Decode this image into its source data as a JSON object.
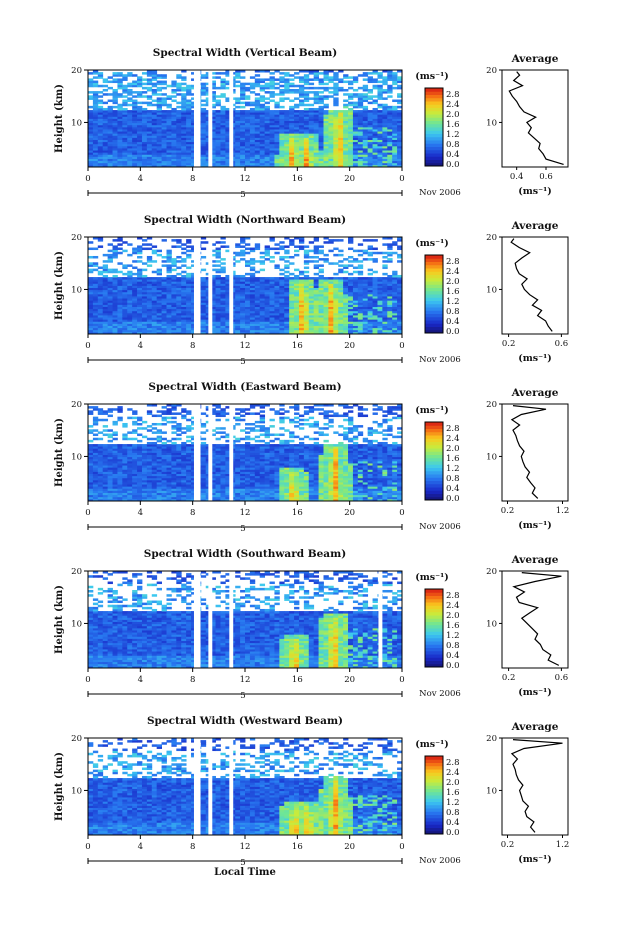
{
  "chart_data": [
    {
      "type": "heatmap",
      "title": "Spectral Width (Vertical Beam)",
      "ylabel": "Height (km)",
      "y_ticks": [
        "20",
        "10"
      ],
      "x_ticks": [
        "0",
        "4",
        "8",
        "12",
        "16",
        "20",
        "0"
      ],
      "day_marker": "5",
      "date_label": "Nov 2006",
      "xlim": [
        0,
        24
      ],
      "ylim": [
        1.5,
        20
      ],
      "colorbar": {
        "unit": "(ms⁻¹)",
        "ticks": [
          "2.8",
          "2.4",
          "2.0",
          "1.6",
          "1.2",
          "0.8",
          "0.4",
          "0.0"
        ],
        "range": [
          0,
          3
        ]
      },
      "data_gaps_hours": [
        [
          8.1,
          8.6
        ],
        [
          9.2,
          9.5
        ],
        [
          10.8,
          11.1
        ]
      ],
      "high_features": [
        {
          "t": 15.6,
          "h": 3
        },
        {
          "t": 16.7,
          "h": 3
        },
        {
          "t": 19.2,
          "h": 8
        }
      ],
      "average": {
        "title": "Average",
        "xlabel": "(ms⁻¹)",
        "x_ticks": [
          "0.4",
          "0.6"
        ],
        "y_ticks": [
          "20",
          "10"
        ],
        "xlim": [
          0.3,
          0.75
        ],
        "h": [
          2,
          3,
          4,
          5,
          6,
          7,
          8,
          9,
          10,
          11,
          12,
          13,
          14,
          15,
          16,
          17,
          18,
          19,
          19.7
        ],
        "v": [
          0.72,
          0.6,
          0.58,
          0.55,
          0.56,
          0.52,
          0.48,
          0.5,
          0.47,
          0.53,
          0.45,
          0.42,
          0.4,
          0.37,
          0.35,
          0.44,
          0.38,
          0.42,
          0.4
        ]
      }
    },
    {
      "type": "heatmap",
      "title": "Spectral Width (Northward Beam)",
      "ylabel": "Height (km)",
      "y_ticks": [
        "20",
        "10"
      ],
      "x_ticks": [
        "0",
        "4",
        "8",
        "12",
        "16",
        "20",
        "0"
      ],
      "day_marker": "5",
      "date_label": "Nov 2006",
      "xlim": [
        0,
        24
      ],
      "ylim": [
        1.5,
        20
      ],
      "colorbar": {
        "unit": "(ms⁻¹)",
        "ticks": [
          "2.8",
          "2.4",
          "2.0",
          "1.6",
          "1.2",
          "0.8",
          "0.4",
          "0.0"
        ],
        "range": [
          0,
          3
        ]
      },
      "data_gaps_hours": [
        [
          8.1,
          8.6
        ],
        [
          9.2,
          9.5
        ],
        [
          10.8,
          11.1
        ]
      ],
      "high_features": [
        {
          "t": 16.4,
          "h": 7
        },
        {
          "t": 18.6,
          "h": 7
        }
      ],
      "average": {
        "title": "Average",
        "xlabel": "(ms⁻¹)",
        "x_ticks": [
          "0.2",
          "0.6"
        ],
        "y_ticks": [
          "20",
          "10"
        ],
        "xlim": [
          0.15,
          0.65
        ],
        "h": [
          2,
          3,
          4,
          5,
          6,
          7,
          8,
          9,
          10,
          11,
          12,
          13,
          14,
          15,
          16,
          17,
          18,
          19,
          19.7
        ],
        "v": [
          0.53,
          0.5,
          0.48,
          0.42,
          0.45,
          0.38,
          0.42,
          0.36,
          0.32,
          0.3,
          0.34,
          0.28,
          0.26,
          0.25,
          0.3,
          0.36,
          0.28,
          0.22,
          0.24
        ]
      }
    },
    {
      "type": "heatmap",
      "title": "Spectral Width (Eastward Beam)",
      "ylabel": "Height (km)",
      "y_ticks": [
        "20",
        "10"
      ],
      "x_ticks": [
        "0",
        "4",
        "8",
        "12",
        "16",
        "20",
        "0"
      ],
      "day_marker": "5",
      "date_label": "Nov 2006",
      "xlim": [
        0,
        24
      ],
      "ylim": [
        1.5,
        20
      ],
      "colorbar": {
        "unit": "(ms⁻¹)",
        "ticks": [
          "2.8",
          "2.4",
          "2.0",
          "1.6",
          "1.2",
          "0.8",
          "0.4",
          "0.0"
        ],
        "range": [
          0,
          3
        ]
      },
      "data_gaps_hours": [
        [
          8.1,
          8.6
        ],
        [
          9.2,
          9.5
        ],
        [
          10.8,
          11.1
        ]
      ],
      "high_features": [
        {
          "t": 15.7,
          "h": 3
        },
        {
          "t": 18.9,
          "h": 8
        }
      ],
      "average": {
        "title": "Average",
        "xlabel": "(ms⁻¹)",
        "x_ticks": [
          "0.2",
          "1.2"
        ],
        "y_ticks": [
          "20",
          "10"
        ],
        "xlim": [
          0.1,
          1.3
        ],
        "h": [
          2,
          3,
          4,
          5,
          6,
          7,
          8,
          9,
          10,
          11,
          12,
          13,
          14,
          15,
          16,
          17,
          18,
          19,
          19.7
        ],
        "v": [
          0.75,
          0.65,
          0.7,
          0.62,
          0.55,
          0.6,
          0.52,
          0.48,
          0.45,
          0.5,
          0.42,
          0.38,
          0.35,
          0.3,
          0.42,
          0.28,
          0.45,
          0.9,
          0.3
        ]
      }
    },
    {
      "type": "heatmap",
      "title": "Spectral Width (Southward Beam)",
      "ylabel": "Height (km)",
      "y_ticks": [
        "20",
        "10"
      ],
      "x_ticks": [
        "0",
        "4",
        "8",
        "12",
        "16",
        "20",
        "0"
      ],
      "day_marker": "5",
      "date_label": "Nov 2006",
      "xlim": [
        0,
        24
      ],
      "ylim": [
        1.5,
        20
      ],
      "colorbar": {
        "unit": "(ms⁻¹)",
        "ticks": [
          "2.8",
          "2.4",
          "2.0",
          "1.6",
          "1.2",
          "0.8",
          "0.4",
          "0.0"
        ],
        "range": [
          0,
          3
        ]
      },
      "data_gaps_hours": [
        [
          8.1,
          8.6
        ],
        [
          9.2,
          9.5
        ],
        [
          10.8,
          11.1
        ],
        [
          22.2,
          22.5
        ]
      ],
      "high_features": [
        {
          "t": 15.8,
          "h": 3
        },
        {
          "t": 18.8,
          "h": 7
        }
      ],
      "average": {
        "title": "Average",
        "xlabel": "(ms⁻¹)",
        "x_ticks": [
          "0.2",
          "0.6"
        ],
        "y_ticks": [
          "20",
          "10"
        ],
        "xlim": [
          0.15,
          0.65
        ],
        "h": [
          2,
          3,
          4,
          5,
          6,
          7,
          8,
          9,
          10,
          11,
          12,
          13,
          14,
          15,
          16,
          17,
          18,
          19,
          19.7
        ],
        "v": [
          0.58,
          0.5,
          0.52,
          0.46,
          0.44,
          0.4,
          0.42,
          0.38,
          0.34,
          0.3,
          0.36,
          0.42,
          0.28,
          0.26,
          0.32,
          0.24,
          0.4,
          0.6,
          0.3
        ]
      }
    },
    {
      "type": "heatmap",
      "title": "Spectral Width (Westward Beam)",
      "ylabel": "Height (km)",
      "xlabel": "Local Time",
      "y_ticks": [
        "20",
        "10"
      ],
      "x_ticks": [
        "0",
        "4",
        "8",
        "12",
        "16",
        "20",
        "0"
      ],
      "day_marker": "5",
      "date_label": "Nov 2006",
      "xlim": [
        0,
        24
      ],
      "ylim": [
        1.5,
        20
      ],
      "colorbar": {
        "unit": "(ms⁻¹)",
        "ticks": [
          "2.8",
          "2.4",
          "2.0",
          "1.6",
          "1.2",
          "0.8",
          "0.4",
          "0.0"
        ],
        "range": [
          0,
          3
        ]
      },
      "data_gaps_hours": [
        [
          8.1,
          8.6
        ],
        [
          9.2,
          9.5
        ],
        [
          10.8,
          11.1
        ]
      ],
      "high_features": [
        {
          "t": 15.8,
          "h": 3
        },
        {
          "t": 16.8,
          "h": 3
        },
        {
          "t": 18.9,
          "h": 8
        }
      ],
      "average": {
        "title": "Average",
        "xlabel": "(ms⁻¹)",
        "x_ticks": [
          "0.2",
          "1.2"
        ],
        "y_ticks": [
          "20",
          "10"
        ],
        "xlim": [
          0.1,
          1.3
        ],
        "h": [
          2,
          3,
          4,
          5,
          6,
          7,
          8,
          9,
          10,
          11,
          12,
          13,
          14,
          15,
          16,
          17,
          18,
          19,
          19.7
        ],
        "v": [
          0.7,
          0.62,
          0.68,
          0.55,
          0.52,
          0.58,
          0.48,
          0.45,
          0.42,
          0.48,
          0.4,
          0.36,
          0.34,
          0.3,
          0.38,
          0.28,
          0.5,
          1.2,
          0.3
        ]
      }
    }
  ]
}
